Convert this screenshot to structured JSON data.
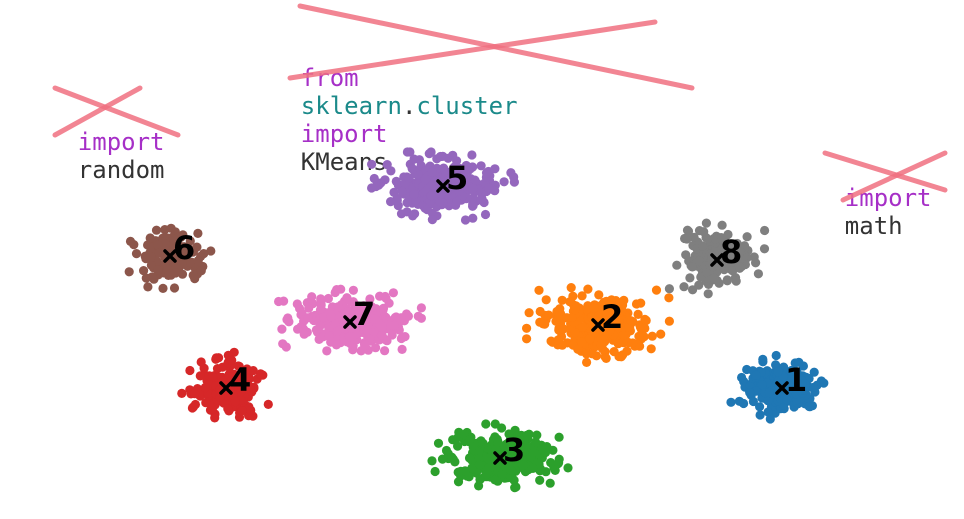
{
  "imports": [
    {
      "keyword": "from",
      "module_a": "sklearn",
      "dot": ".",
      "module_b": "cluster",
      "keyword2": "import",
      "name": "KMeans"
    },
    {
      "keyword": "import",
      "name": "random"
    },
    {
      "keyword": "import",
      "name": "math"
    }
  ],
  "colors": {
    "keyword": "#a62fc7",
    "module": "#1b8a8a",
    "text": "#333333",
    "strike": "#f07080",
    "centroid": "#000000"
  },
  "chart_data": {
    "type": "scatter",
    "title": "",
    "xlabel": "",
    "ylabel": "",
    "grid": false,
    "clusters": [
      {
        "label": "1",
        "color": "#1f77b4",
        "center": [
          782,
          388
        ],
        "spread": [
          30,
          20
        ],
        "count": 190
      },
      {
        "label": "2",
        "color": "#ff7f0e",
        "center": [
          598,
          325
        ],
        "spread": [
          42,
          22
        ],
        "count": 300
      },
      {
        "label": "3",
        "color": "#2ca02c",
        "center": [
          500,
          458
        ],
        "spread": [
          40,
          20
        ],
        "count": 320
      },
      {
        "label": "4",
        "color": "#d62728",
        "center": [
          226,
          388
        ],
        "spread": [
          26,
          22
        ],
        "count": 190
      },
      {
        "label": "5",
        "color": "#9467bd",
        "center": [
          443,
          186
        ],
        "spread": [
          42,
          20
        ],
        "count": 300
      },
      {
        "label": "6",
        "color": "#8c564b",
        "center": [
          170,
          256
        ],
        "spread": [
          24,
          20
        ],
        "count": 160
      },
      {
        "label": "7",
        "color": "#e377c2",
        "center": [
          350,
          322
        ],
        "spread": [
          42,
          22
        ],
        "count": 290
      },
      {
        "label": "8",
        "color": "#7f7f7f",
        "center": [
          717,
          260
        ],
        "spread": [
          28,
          22
        ],
        "count": 190
      }
    ]
  }
}
